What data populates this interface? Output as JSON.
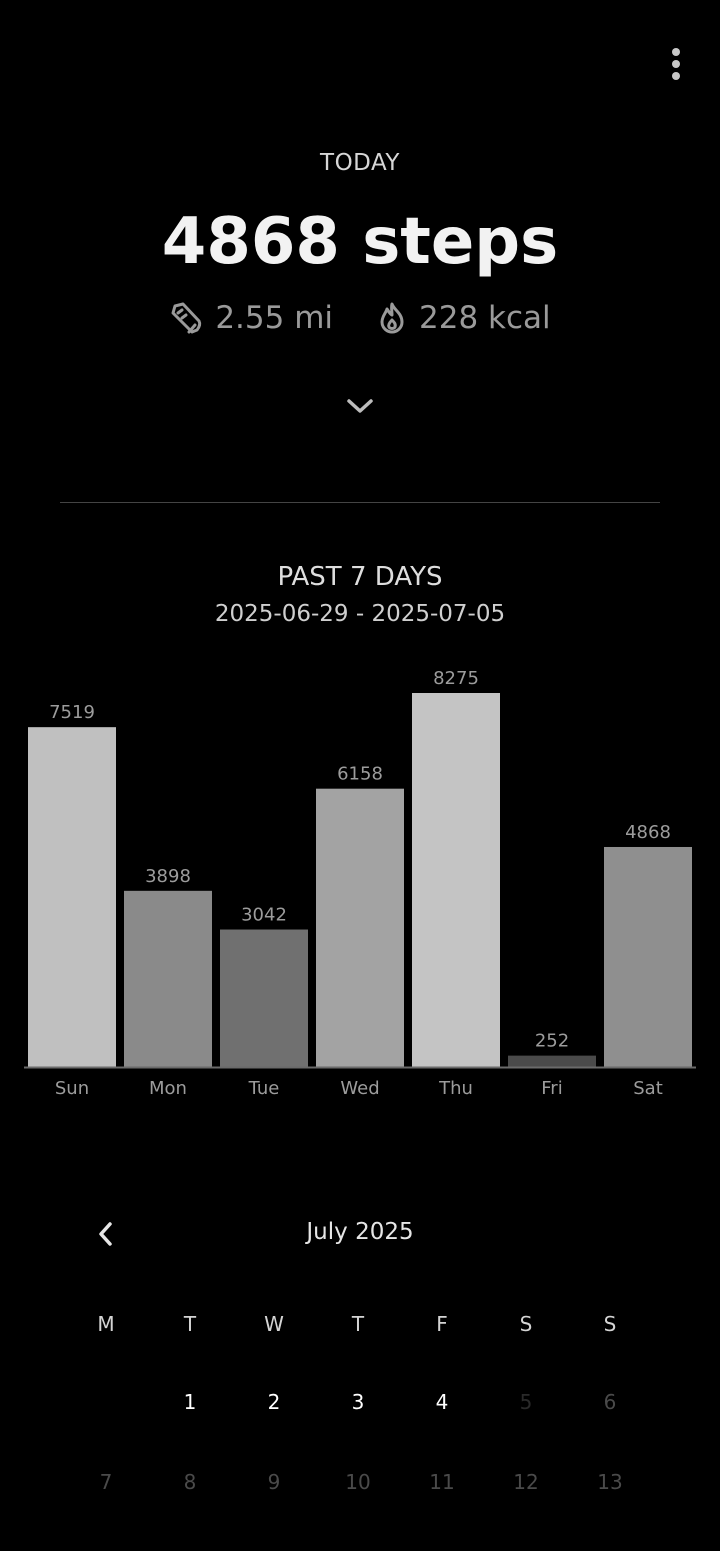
{
  "today": {
    "label": "TODAY",
    "steps_text": "4868 steps",
    "distance": "2.55 mi",
    "calories": "228 kcal"
  },
  "past_week": {
    "title": "PAST 7 DAYS",
    "date_range": "2025-06-29 - 2025-07-05"
  },
  "chart_data": {
    "type": "bar",
    "categories": [
      "Sun",
      "Mon",
      "Tue",
      "Wed",
      "Thu",
      "Fri",
      "Sat"
    ],
    "values": [
      7519,
      3898,
      3042,
      6158,
      8275,
      252,
      4868
    ],
    "colors": [
      "#c0c0c0",
      "#8a8a8a",
      "#707070",
      "#a3a3a3",
      "#c4c4c4",
      "#4a4a4a",
      "#8f8f8f"
    ],
    "title": "",
    "xlabel": "",
    "ylabel": "",
    "ylim": [
      0,
      8275
    ],
    "grid": false,
    "data_labels": true
  },
  "calendar": {
    "month_title": "July 2025",
    "weekdays": [
      "M",
      "T",
      "W",
      "T",
      "F",
      "S",
      "S"
    ],
    "weeks": [
      [
        "",
        "1",
        "2",
        "3",
        "4",
        "5",
        "6"
      ],
      [
        "7",
        "8",
        "9",
        "10",
        "11",
        "12",
        "13"
      ]
    ],
    "selected_day": "5"
  }
}
